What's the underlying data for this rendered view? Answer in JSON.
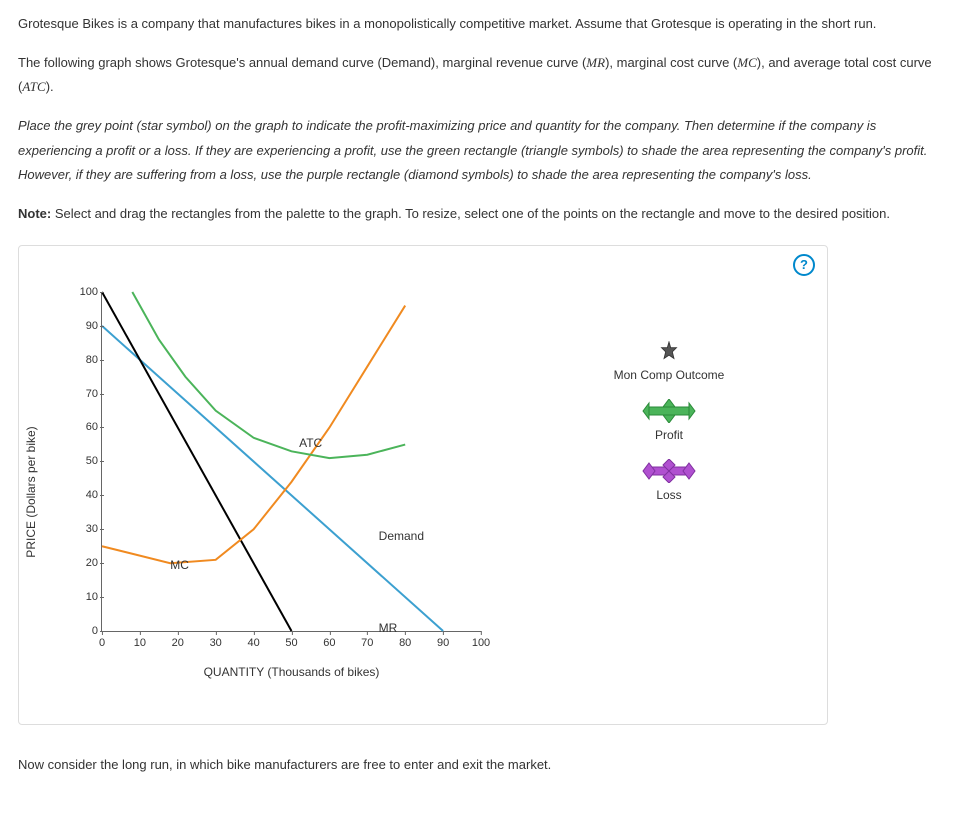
{
  "text": {
    "p1a": "Grotesque Bikes is a company that manufactures bikes in a monopolistically competitive market. Assume that Grotesque is operating in the short run.",
    "p2a": "The following graph shows Grotesque's annual demand curve (Demand), marginal revenue curve (",
    "p2_mr": "MR",
    "p2b": "), marginal cost curve (",
    "p2_mc": "MC",
    "p2c": "), and average total cost curve (",
    "p2_atc": "ATC",
    "p2d": ").",
    "p3": "Place the grey point (star symbol) on the graph to indicate the profit-maximizing price and quantity for the company. Then determine if the company is experiencing a profit or a loss. If they are experiencing a profit, use the green rectangle (triangle symbols) to shade the area representing the company's profit. However, if they are suffering from a loss, use the purple rectangle (diamond symbols) to shade the area representing the company's loss.",
    "note_label": "Note:",
    "note_body": " Select and drag the rectangles from the palette to the graph. To resize, select one of the points on the rectangle and move to the desired position.",
    "followup": "Now consider the long run, in which bike manufacturers are free to enter and exit the market."
  },
  "help_label": "?",
  "graph": {
    "type": "line",
    "xlim": [
      0,
      100
    ],
    "ylim": [
      0,
      100
    ],
    "tick_step": 10,
    "x_axis_label": "QUANTITY (Thousands of bikes)",
    "y_axis_label": "PRICE (Dollars per bike)",
    "colors": {
      "axis": "#666666",
      "demand": "#3ca0d0",
      "mr": "#000000",
      "mc": "#f08a20",
      "atc": "#4bb45a"
    },
    "line_width": 2,
    "curves": {
      "demand": {
        "label": "Demand",
        "pts": [
          [
            0,
            90
          ],
          [
            90,
            0
          ]
        ],
        "label_pos": [
          73,
          30
        ]
      },
      "mr": {
        "label": "MR",
        "pts": [
          [
            0,
            100
          ],
          [
            50,
            0
          ]
        ],
        "label_pos": [
          73,
          3
        ]
      },
      "mc": {
        "label": "MC",
        "pts": [
          [
            0,
            25
          ],
          [
            18,
            20
          ],
          [
            30,
            21
          ],
          [
            40,
            30
          ],
          [
            50,
            44
          ],
          [
            60,
            60
          ],
          [
            70,
            78
          ],
          [
            80,
            96
          ]
        ],
        "label_pos": [
          18,
          21.5
        ]
      },
      "atc": {
        "label": "ATC",
        "pts": [
          [
            8,
            100
          ],
          [
            15,
            86
          ],
          [
            22,
            75
          ],
          [
            30,
            65
          ],
          [
            40,
            57
          ],
          [
            50,
            53
          ],
          [
            60,
            51
          ],
          [
            70,
            52
          ],
          [
            80,
            55
          ]
        ],
        "label_pos": [
          52,
          57.5
        ]
      }
    }
  },
  "legend": {
    "outcome": {
      "label": "Mon Comp Outcome",
      "color": "#555555"
    },
    "profit": {
      "label": "Profit",
      "color": "#4bb45a"
    },
    "loss": {
      "label": "Loss",
      "color": "#b050d0"
    }
  }
}
